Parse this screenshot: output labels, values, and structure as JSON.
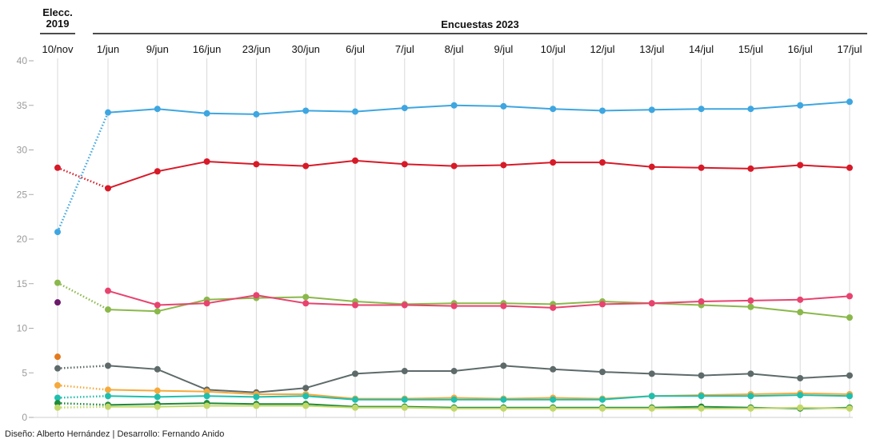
{
  "header": {
    "elecc_line1": "Elecc.",
    "elecc_line2": "2019",
    "encuestas": "Encuestas 2023"
  },
  "credit": "Diseño: Alberto Hernández | Desarrollo: Fernando Anido",
  "chart_data": {
    "type": "line",
    "x": [
      "10/nov",
      "1/jun",
      "9/jun",
      "16/jun",
      "23/jun",
      "30/jun",
      "6/jul",
      "7/jul",
      "8/jul",
      "9/jul",
      "10/jul",
      "12/jul",
      "13/jul",
      "14/jul",
      "15/jul",
      "16/jul",
      "17/jul"
    ],
    "ylim": [
      0,
      40
    ],
    "yticks": [
      0,
      5,
      10,
      15,
      20,
      25,
      30,
      35,
      40
    ],
    "grid": true,
    "series": [
      {
        "color": "#3ea6e0",
        "values": [
          20.8,
          34.2,
          34.6,
          34.1,
          34.0,
          34.4,
          34.3,
          34.7,
          35.0,
          34.9,
          34.6,
          34.4,
          34.5,
          34.6,
          34.6,
          35.0,
          35.4
        ]
      },
      {
        "color": "#d71a28",
        "values": [
          28.0,
          25.7,
          27.6,
          28.7,
          28.4,
          28.2,
          28.8,
          28.4,
          28.2,
          28.3,
          28.6,
          28.6,
          28.1,
          28.0,
          27.9,
          28.3,
          28.0
        ]
      },
      {
        "color": "#8ab84b",
        "values": [
          15.1,
          12.1,
          11.9,
          13.2,
          13.4,
          13.5,
          13.0,
          12.7,
          12.8,
          12.8,
          12.7,
          13.0,
          12.8,
          12.6,
          12.4,
          11.8,
          11.2
        ]
      },
      {
        "color": "#e8436f",
        "values": [
          null,
          14.2,
          12.6,
          12.8,
          13.7,
          12.8,
          12.6,
          12.6,
          12.5,
          12.5,
          12.3,
          12.7,
          12.8,
          13.0,
          13.1,
          13.2,
          13.6
        ]
      },
      {
        "color": "#5e6a6a",
        "values": [
          5.5,
          5.8,
          5.4,
          3.1,
          2.8,
          3.3,
          4.9,
          5.2,
          5.2,
          5.8,
          5.4,
          5.1,
          4.9,
          4.7,
          4.9,
          4.4,
          4.7
        ]
      },
      {
        "color": "#f6a93b",
        "values": [
          3.6,
          3.1,
          3.0,
          2.9,
          2.6,
          2.6,
          2.1,
          2.1,
          2.2,
          2.1,
          2.2,
          2.1,
          2.4,
          2.5,
          2.6,
          2.7,
          2.6
        ]
      },
      {
        "color": "#1fbfae",
        "values": [
          2.2,
          2.4,
          2.3,
          2.4,
          2.3,
          2.4,
          2.0,
          2.0,
          2.0,
          2.0,
          2.0,
          2.0,
          2.4,
          2.4,
          2.4,
          2.5,
          2.4
        ]
      },
      {
        "color": "#1f8a3a",
        "values": [
          1.6,
          1.4,
          1.5,
          1.6,
          1.5,
          1.5,
          1.2,
          1.2,
          1.1,
          1.1,
          1.1,
          1.1,
          1.1,
          1.2,
          1.1,
          1.0,
          1.1
        ]
      },
      {
        "color": "#c3d86a",
        "values": [
          1.1,
          1.2,
          1.2,
          1.3,
          1.3,
          1.3,
          1.1,
          1.1,
          1.0,
          1.0,
          1.0,
          1.0,
          1.0,
          1.0,
          1.0,
          1.1,
          1.0
        ]
      },
      {
        "color": "#6b1a6b",
        "values": [
          12.9,
          null,
          null,
          null,
          null,
          null,
          null,
          null,
          null,
          null,
          null,
          null,
          null,
          null,
          null,
          null,
          null
        ]
      },
      {
        "color": "#e37a1f",
        "values": [
          6.8,
          null,
          null,
          null,
          null,
          null,
          null,
          null,
          null,
          null,
          null,
          null,
          null,
          null,
          null,
          null,
          null
        ]
      }
    ]
  }
}
